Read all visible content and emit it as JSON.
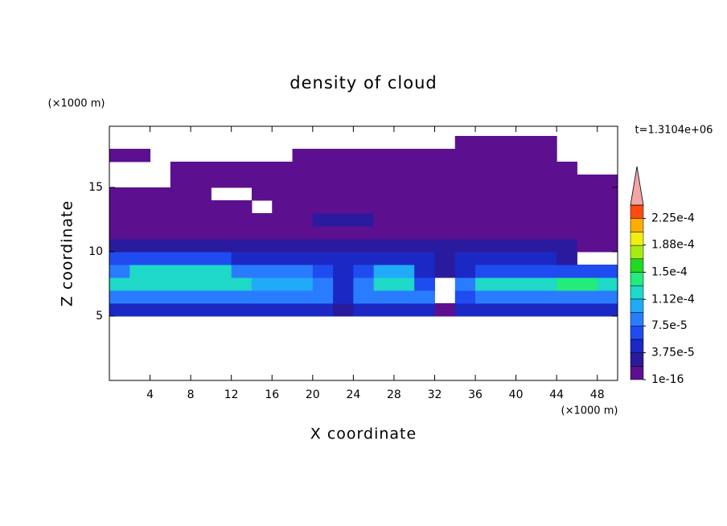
{
  "chart_data": {
    "type": "contour",
    "title": "density of cloud",
    "x_label": "X coordinate",
    "y_label": "Z coordinate",
    "x_unit": "(×1000 m)",
    "y_unit": "(×1000 m)",
    "annotation": "t=1.3104e+06",
    "xlim": [
      0,
      50
    ],
    "ylim": [
      0,
      19.75
    ],
    "xticks": [
      4,
      8,
      12,
      16,
      20,
      24,
      28,
      32,
      36,
      40,
      44,
      48
    ],
    "yticks": [
      5,
      10,
      15
    ],
    "x_bins": [
      0,
      2,
      4,
      6,
      8,
      10,
      12,
      14,
      16,
      18,
      20,
      22,
      24,
      26,
      28,
      30,
      32,
      34,
      36,
      38,
      40,
      42,
      44,
      46,
      48,
      50
    ],
    "y_bins": [
      5,
      6,
      7,
      8,
      9,
      10,
      11,
      12,
      13,
      14,
      15,
      16,
      17,
      18,
      19
    ],
    "values": [
      [
        4e-05,
        4e-05,
        4e-05,
        4e-05,
        4e-05,
        4e-05,
        4e-05,
        4e-05,
        4e-05,
        4e-05,
        4e-05,
        2.5e-05,
        4e-05,
        4e-05,
        4e-05,
        4e-05,
        1e-05,
        4e-05,
        4e-05,
        4e-05,
        4e-05,
        4e-05,
        4e-05,
        4e-05,
        4e-05
      ],
      [
        8e-05,
        8e-05,
        8e-05,
        8e-05,
        8e-05,
        8e-05,
        8e-05,
        8e-05,
        8e-05,
        8e-05,
        8e-05,
        4e-05,
        8e-05,
        8e-05,
        8e-05,
        8e-05,
        null,
        6e-05,
        8e-05,
        8e-05,
        8e-05,
        8e-05,
        8e-05,
        8e-05,
        8e-05
      ],
      [
        0.00012,
        0.00012,
        0.00012,
        0.00012,
        0.00012,
        0.00012,
        0.00012,
        0.0001,
        0.0001,
        0.0001,
        8e-05,
        4e-05,
        8e-05,
        0.00012,
        0.00012,
        6e-05,
        null,
        8e-05,
        0.00012,
        0.00012,
        0.00012,
        0.00012,
        0.00014,
        0.00014,
        0.00012
      ],
      [
        8e-05,
        0.00012,
        0.00012,
        0.00012,
        0.00012,
        0.00012,
        8e-05,
        8e-05,
        8e-05,
        8e-05,
        6e-05,
        4e-05,
        6e-05,
        0.0001,
        0.0001,
        4e-05,
        2.5e-05,
        4e-05,
        6e-05,
        6e-05,
        6e-05,
        6e-05,
        6e-05,
        6e-05,
        6e-05
      ],
      [
        6e-05,
        6e-05,
        6e-05,
        6e-05,
        6e-05,
        6e-05,
        4e-05,
        4e-05,
        4e-05,
        4e-05,
        4e-05,
        4e-05,
        4e-05,
        4e-05,
        4e-05,
        4e-05,
        2.5e-05,
        4e-05,
        4e-05,
        4e-05,
        4e-05,
        4e-05,
        2.5e-05,
        null,
        null
      ],
      [
        2.5e-05,
        2.5e-05,
        2.5e-05,
        2.5e-05,
        2.5e-05,
        2.5e-05,
        2.5e-05,
        2.5e-05,
        2.5e-05,
        2.5e-05,
        2.5e-05,
        2.5e-05,
        2.5e-05,
        2.5e-05,
        2.5e-05,
        2.5e-05,
        2.5e-05,
        2.5e-05,
        2.5e-05,
        2.5e-05,
        2.5e-05,
        2.5e-05,
        2.5e-05,
        1e-05,
        1e-05
      ],
      [
        1e-05,
        1e-05,
        1e-05,
        1e-05,
        1e-05,
        1e-05,
        1e-05,
        1e-05,
        1e-05,
        1e-05,
        1e-05,
        1e-05,
        1e-05,
        1e-05,
        1e-05,
        1e-05,
        1e-05,
        1e-05,
        1e-05,
        1e-05,
        1e-05,
        1e-05,
        1e-05,
        1e-05,
        1e-05
      ],
      [
        1e-05,
        1e-05,
        1e-05,
        1e-05,
        1e-05,
        1e-05,
        1e-05,
        1e-05,
        1e-05,
        1e-05,
        2.5e-05,
        2.5e-05,
        2.5e-05,
        1e-05,
        1e-05,
        1e-05,
        1e-05,
        1e-05,
        1e-05,
        1e-05,
        1e-05,
        1e-05,
        1e-05,
        1e-05,
        1e-05
      ],
      [
        1e-05,
        1e-05,
        1e-05,
        1e-05,
        1e-05,
        1e-05,
        1e-05,
        null,
        1e-05,
        1e-05,
        1e-05,
        1e-05,
        1e-05,
        1e-05,
        1e-05,
        1e-05,
        1e-05,
        1e-05,
        1e-05,
        1e-05,
        1e-05,
        1e-05,
        1e-05,
        1e-05,
        1e-05
      ],
      [
        1e-05,
        1e-05,
        1e-05,
        1e-05,
        1e-05,
        null,
        null,
        1e-05,
        1e-05,
        1e-05,
        1e-05,
        1e-05,
        1e-05,
        1e-05,
        1e-05,
        1e-05,
        1e-05,
        1e-05,
        1e-05,
        1e-05,
        1e-05,
        1e-05,
        1e-05,
        1e-05,
        1e-05
      ],
      [
        null,
        null,
        null,
        1e-05,
        1e-05,
        1e-05,
        1e-05,
        1e-05,
        1e-05,
        1e-05,
        1e-05,
        1e-05,
        1e-05,
        1e-05,
        1e-05,
        1e-05,
        1e-05,
        1e-05,
        1e-05,
        1e-05,
        1e-05,
        1e-05,
        1e-05,
        1e-05,
        1e-05
      ],
      [
        null,
        null,
        null,
        1e-05,
        1e-05,
        1e-05,
        1e-05,
        1e-05,
        1e-05,
        1e-05,
        1e-05,
        1e-05,
        1e-05,
        1e-05,
        1e-05,
        1e-05,
        1e-05,
        1e-05,
        1e-05,
        1e-05,
        1e-05,
        1e-05,
        1e-05,
        null,
        null
      ],
      [
        1e-05,
        1e-05,
        null,
        null,
        null,
        null,
        null,
        null,
        null,
        1e-05,
        1e-05,
        1e-05,
        1e-05,
        1e-05,
        1e-05,
        1e-05,
        1e-05,
        1e-05,
        1e-05,
        1e-05,
        1e-05,
        1e-05,
        null,
        null,
        null
      ],
      [
        null,
        null,
        null,
        null,
        null,
        null,
        null,
        null,
        null,
        null,
        null,
        null,
        null,
        null,
        null,
        null,
        null,
        1e-05,
        1e-05,
        1e-05,
        1e-05,
        1e-05,
        null,
        null,
        null
      ]
    ],
    "colorbar": {
      "levels": [
        1e-16,
        1.875e-05,
        3.75e-05,
        5.625e-05,
        7.5e-05,
        9.375e-05,
        0.0001125,
        0.00013125,
        0.00015,
        0.00016875,
        0.0001875,
        0.00020625,
        0.000225,
        0.00024375
      ],
      "colors": [
        "#5c108f",
        "#2a1a9e",
        "#1c28c4",
        "#1f4cf0",
        "#2a7cff",
        "#20aaf8",
        "#1ed8c8",
        "#22ec7a",
        "#22d822",
        "#a6ec10",
        "#f2ee10",
        "#ffae00",
        "#ff4a10"
      ],
      "extend_color": "#f2a6a6",
      "ticks": [
        {
          "value": 1e-16,
          "label": "1e-16"
        },
        {
          "value": 3.75e-05,
          "label": "3.75e-5"
        },
        {
          "value": 7.5e-05,
          "label": "7.5e-5"
        },
        {
          "value": 0.000112,
          "label": "1.12e-4"
        },
        {
          "value": 0.00015,
          "label": "1.5e-4"
        },
        {
          "value": 0.000188,
          "label": "1.88e-4"
        },
        {
          "value": 0.000225,
          "label": "2.25e-4"
        }
      ]
    }
  }
}
